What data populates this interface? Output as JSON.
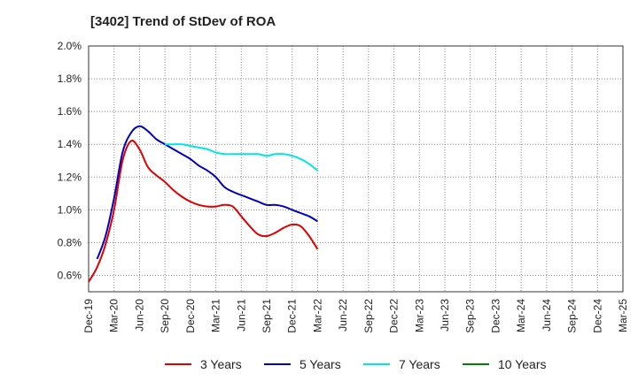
{
  "chart_data": {
    "type": "line",
    "title": "[3402]  Trend of StDev of ROA",
    "xlabel": "",
    "ylabel": "",
    "x_ticks": [
      "Dec-19",
      "Mar-20",
      "Jun-20",
      "Sep-20",
      "Dec-20",
      "Mar-21",
      "Jun-21",
      "Sep-21",
      "Dec-21",
      "Mar-22",
      "Jun-22",
      "Sep-22",
      "Dec-22",
      "Mar-23",
      "Jun-23",
      "Sep-23",
      "Dec-23",
      "Mar-24",
      "Jun-24",
      "Sep-24",
      "Dec-24",
      "Mar-25"
    ],
    "y_ticks": [
      "0.6%",
      "0.8%",
      "1.0%",
      "1.2%",
      "1.4%",
      "1.6%",
      "1.8%",
      "2.0%"
    ],
    "ylim": [
      0.5,
      2.0
    ],
    "grid": true,
    "legend_position": "bottom",
    "series": [
      {
        "name": "3 Years",
        "color": "#e00000",
        "values": [
          [
            0,
            0.56
          ],
          [
            1,
            0.65
          ],
          [
            2,
            0.79
          ],
          [
            3,
            1.0
          ],
          [
            4,
            1.3
          ],
          [
            5,
            1.42
          ],
          [
            6,
            1.37
          ],
          [
            7,
            1.26
          ],
          [
            8,
            1.21
          ],
          [
            9,
            1.17
          ],
          [
            10,
            1.12
          ],
          [
            11,
            1.08
          ],
          [
            12,
            1.05
          ],
          [
            13,
            1.03
          ],
          [
            14,
            1.02
          ],
          [
            15,
            1.02
          ],
          [
            16,
            1.03
          ],
          [
            17,
            1.02
          ],
          [
            18,
            0.96
          ],
          [
            19,
            0.9
          ],
          [
            20,
            0.85
          ],
          [
            21,
            0.84
          ],
          [
            22,
            0.86
          ],
          [
            23,
            0.89
          ],
          [
            24,
            0.91
          ],
          [
            25,
            0.9
          ],
          [
            26,
            0.84
          ],
          [
            27,
            0.76
          ]
        ]
      },
      {
        "name": "5 Years",
        "color": "#0000c0",
        "values": [
          [
            1,
            0.7
          ],
          [
            2,
            0.84
          ],
          [
            3,
            1.07
          ],
          [
            4,
            1.35
          ],
          [
            5,
            1.47
          ],
          [
            6,
            1.51
          ],
          [
            7,
            1.48
          ],
          [
            8,
            1.43
          ],
          [
            9,
            1.4
          ],
          [
            10,
            1.37
          ],
          [
            11,
            1.34
          ],
          [
            12,
            1.31
          ],
          [
            13,
            1.27
          ],
          [
            14,
            1.24
          ],
          [
            15,
            1.2
          ],
          [
            16,
            1.14
          ],
          [
            17,
            1.11
          ],
          [
            18,
            1.09
          ],
          [
            19,
            1.07
          ],
          [
            20,
            1.05
          ],
          [
            21,
            1.03
          ],
          [
            22,
            1.03
          ],
          [
            23,
            1.02
          ],
          [
            24,
            1.0
          ],
          [
            25,
            0.98
          ],
          [
            26,
            0.96
          ],
          [
            27,
            0.93
          ]
        ]
      },
      {
        "name": "7 Years",
        "color": "#00e5e5",
        "values": [
          [
            9,
            1.4
          ],
          [
            10,
            1.4
          ],
          [
            11,
            1.4
          ],
          [
            12,
            1.39
          ],
          [
            13,
            1.38
          ],
          [
            14,
            1.37
          ],
          [
            15,
            1.35
          ],
          [
            16,
            1.34
          ],
          [
            17,
            1.34
          ],
          [
            18,
            1.34
          ],
          [
            19,
            1.34
          ],
          [
            20,
            1.34
          ],
          [
            21,
            1.33
          ],
          [
            22,
            1.34
          ],
          [
            23,
            1.34
          ],
          [
            24,
            1.33
          ],
          [
            25,
            1.31
          ],
          [
            26,
            1.28
          ],
          [
            27,
            1.24
          ]
        ]
      },
      {
        "name": "10 Years",
        "color": "#008000",
        "values": []
      }
    ]
  }
}
